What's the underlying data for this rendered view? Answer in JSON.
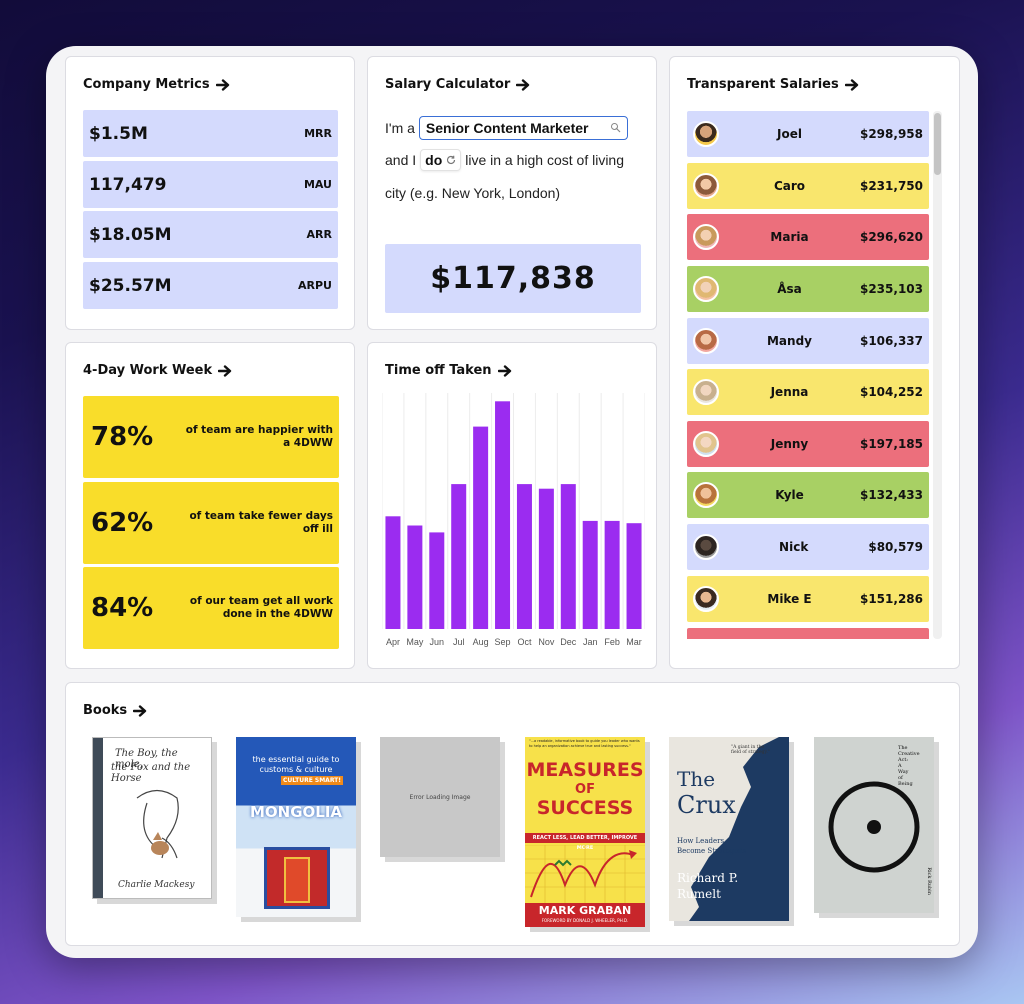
{
  "cards": {
    "company_metrics": {
      "title": "Company Metrics",
      "metrics": [
        {
          "value": "$1.5M",
          "label": "MRR"
        },
        {
          "value": "117,479",
          "label": "MAU"
        },
        {
          "value": "$18.05M",
          "label": "ARR"
        },
        {
          "value": "$25.57M",
          "label": "ARPU"
        }
      ]
    },
    "salary_calculator": {
      "title": "Salary Calculator",
      "prefix": "I'm a",
      "role_value": "Senior Content Marketer",
      "and_i": "and I",
      "do_value": "do",
      "suffix": "live in a high cost of living",
      "line3": "city (e.g. New York, London)",
      "result": "$117,838"
    },
    "transparent_salaries": {
      "title": "Transparent Salaries",
      "rows": [
        {
          "name": "Joel",
          "amount": "$298,958",
          "color": "#d4dafd"
        },
        {
          "name": "Caro",
          "amount": "$231,750",
          "color": "#f9e66d"
        },
        {
          "name": "Maria",
          "amount": "$296,620",
          "color": "#ec6f7c"
        },
        {
          "name": "Åsa",
          "amount": "$235,103",
          "color": "#a8d064"
        },
        {
          "name": "Mandy",
          "amount": "$106,337",
          "color": "#d4dafd"
        },
        {
          "name": "Jenna",
          "amount": "$104,252",
          "color": "#f9e66d"
        },
        {
          "name": "Jenny",
          "amount": "$197,185",
          "color": "#ec6f7c"
        },
        {
          "name": "Kyle",
          "amount": "$132,433",
          "color": "#a8d064"
        },
        {
          "name": "Nick",
          "amount": "$80,579",
          "color": "#d4dafd"
        },
        {
          "name": "Mike E",
          "amount": "$151,286",
          "color": "#f9e66d"
        }
      ]
    },
    "work_week": {
      "title": "4-Day Work Week",
      "stats": [
        {
          "pct": "78%",
          "text": "of team are happier with a 4DWW"
        },
        {
          "pct": "62%",
          "text": "of team take fewer days off ill"
        },
        {
          "pct": "84%",
          "text": "of our team get all work done in the 4DWW"
        }
      ]
    },
    "time_off": {
      "title": "Time off Taken"
    },
    "books": {
      "title": "Books",
      "items": [
        {
          "name": "The Boy, the Mole, the Fox and the Horse",
          "title_lines": [
            "The Boy, the mole,",
            "the Fox and the Horse"
          ],
          "author": "Charlie Mackesy"
        },
        {
          "name": "Mongolia",
          "top": "the essential guide to",
          "top2": "customs & culture",
          "badge": "CULTURE SMART!",
          "title": "MONGOLIA"
        },
        {
          "name": "Error Loading Image",
          "error": "Error Loading Image"
        },
        {
          "name": "Measures of Success",
          "tag": "\"...a readable, informative book to guide you leader who wants to help an organization achieve true and lasting success.\"",
          "title1": "MEASURES",
          "title2": "OF",
          "title3": "SUCCESS",
          "sub": "REACT LESS, LEAD BETTER, IMPROVE MORE",
          "author": "MARK GRABAN",
          "foreword": "FOREWORD BY DONALD J. WHEELER, PH.D."
        },
        {
          "name": "The Crux",
          "title1": "The",
          "title2": "Crux",
          "sub1": "How Leaders",
          "sub2": "Become Strategists",
          "author1": "Richard P.",
          "author2": "Rumelt",
          "quote": "\"A giant in the field of strategy.\""
        },
        {
          "name": "The Creative Act",
          "title_lines": [
            "The",
            "Creative",
            "Act:",
            "A",
            "Way",
            "of",
            "Being"
          ],
          "author": "Rick Rubin"
        }
      ]
    }
  },
  "chart_data": {
    "type": "bar",
    "title": "Time off Taken",
    "categories": [
      "Apr",
      "May",
      "Jun",
      "Jul",
      "Aug",
      "Sep",
      "Oct",
      "Nov",
      "Dec",
      "Jan",
      "Feb",
      "Mar"
    ],
    "values": [
      49,
      45,
      42,
      63,
      88,
      99,
      63,
      61,
      63,
      47,
      47,
      46
    ],
    "color": "#9b2cf0",
    "ylim": [
      0,
      100
    ],
    "grid": true
  }
}
